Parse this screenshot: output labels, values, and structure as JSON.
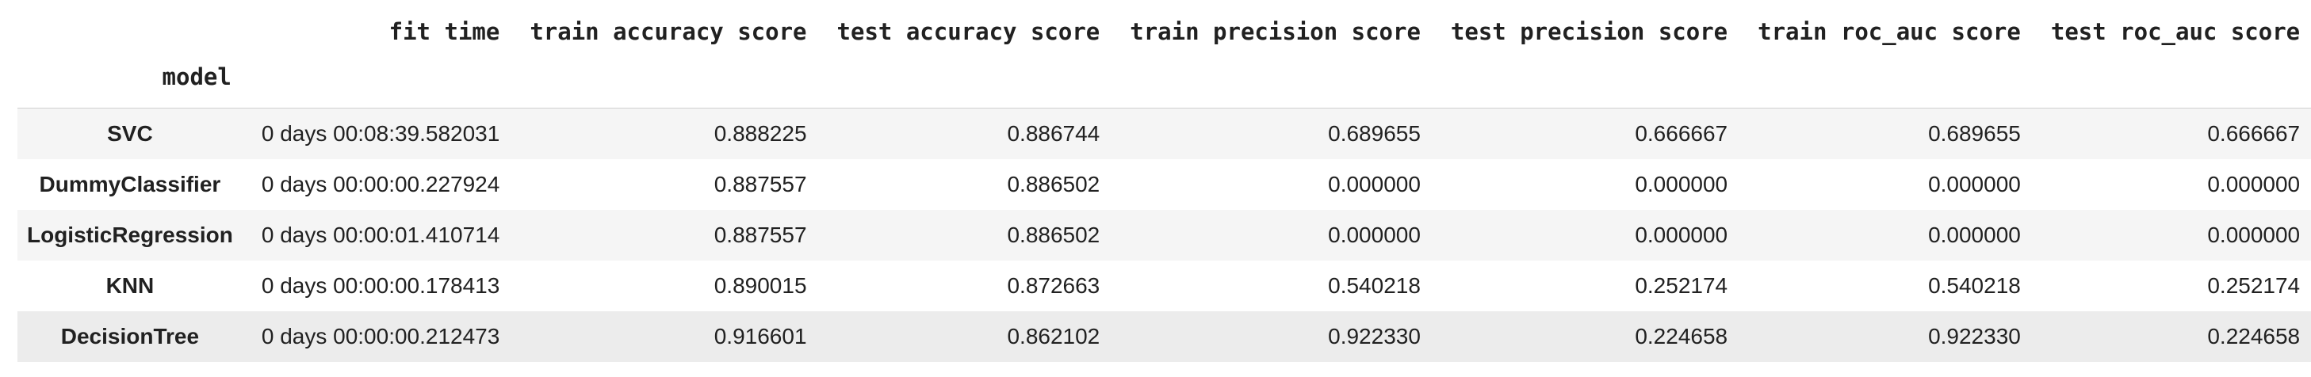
{
  "table": {
    "index_name": "model",
    "columns": [
      "fit time",
      "train accuracy score",
      "test accuracy score",
      "train precision score",
      "test precision score",
      "train roc_auc score",
      "test roc_auc score"
    ],
    "rows": [
      {
        "index": "SVC",
        "values": [
          "0 days 00:08:39.582031",
          "0.888225",
          "0.886744",
          "0.689655",
          "0.666667",
          "0.689655",
          "0.666667"
        ]
      },
      {
        "index": "DummyClassifier",
        "values": [
          "0 days 00:00:00.227924",
          "0.887557",
          "0.886502",
          "0.000000",
          "0.000000",
          "0.000000",
          "0.000000"
        ]
      },
      {
        "index": "LogisticRegression",
        "values": [
          "0 days 00:00:01.410714",
          "0.887557",
          "0.886502",
          "0.000000",
          "0.000000",
          "0.000000",
          "0.000000"
        ]
      },
      {
        "index": "KNN",
        "values": [
          "0 days 00:00:00.178413",
          "0.890015",
          "0.872663",
          "0.540218",
          "0.252174",
          "0.540218",
          "0.252174"
        ]
      },
      {
        "index": "DecisionTree",
        "values": [
          "0 days 00:00:00.212473",
          "0.916601",
          "0.862102",
          "0.922330",
          "0.224658",
          "0.922330",
          "0.224658"
        ]
      }
    ]
  }
}
